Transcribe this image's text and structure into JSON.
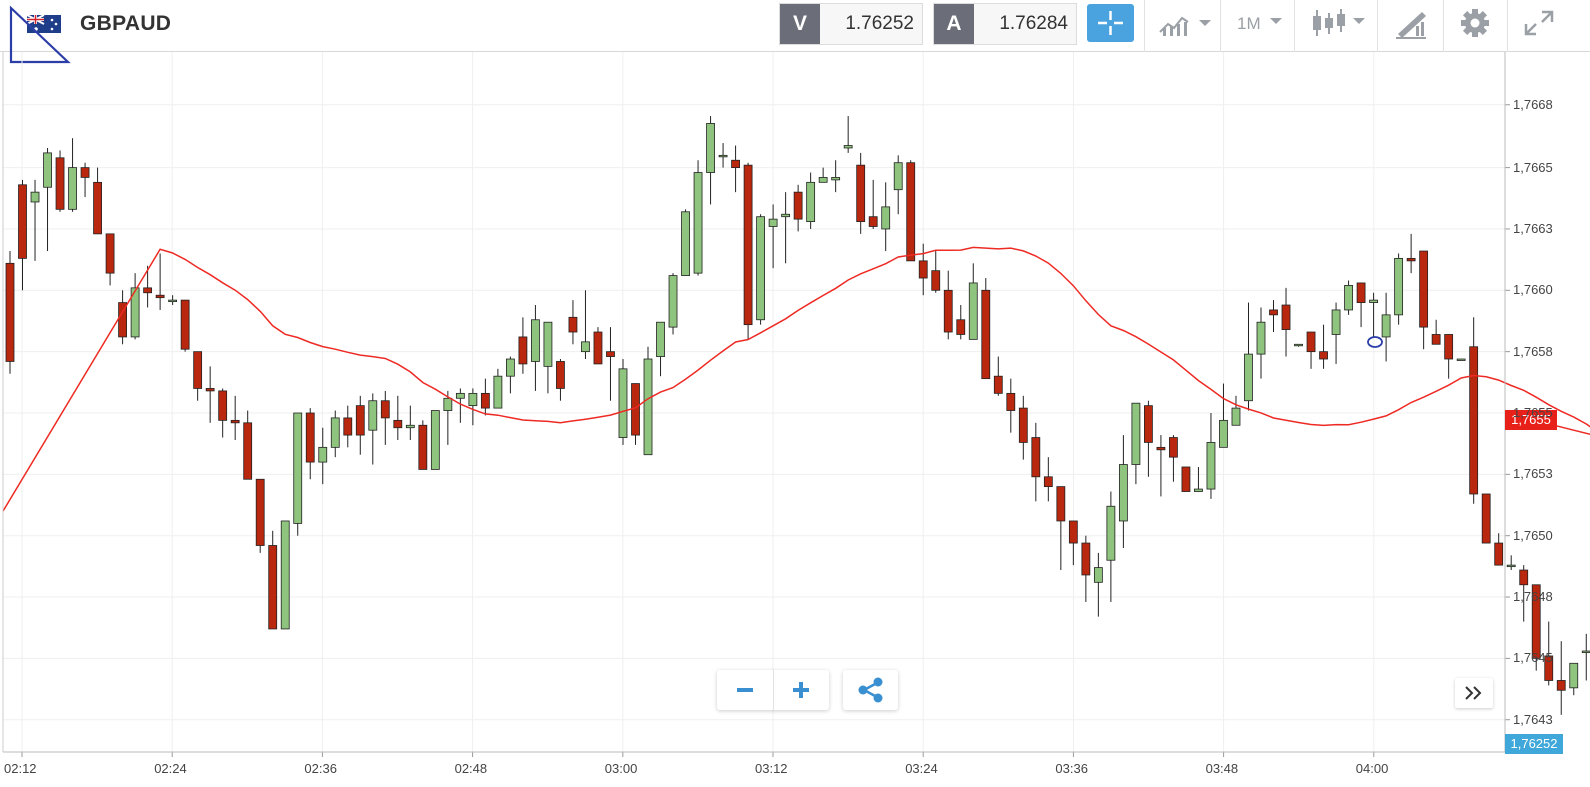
{
  "header": {
    "symbol": "GBPAUD",
    "sell_tag": "V",
    "sell_price": "1.76252",
    "buy_tag": "A",
    "buy_price": "1.76284",
    "timeframe": "1M",
    "icons": [
      "flag-au-icon",
      "draw-triangle-icon",
      "crosshair-icon",
      "chart-type-icon",
      "candlestick-icon",
      "drawing-tools-icon",
      "gear-icon",
      "fullscreen-icon"
    ]
  },
  "chart_data": {
    "type": "candlestick",
    "instrument": "GBPAUD",
    "interval": "1M",
    "y_ticks": [
      "1,7668",
      "1,7665",
      "1,7663",
      "1,7660",
      "1,7658",
      "1,7655",
      "1,7653",
      "1,7650",
      "1,7648",
      "1,7645",
      "1,7643"
    ],
    "x_ticks": [
      "02:12",
      "02:24",
      "02:36",
      "02:48",
      "03:00",
      "03:12",
      "03:24",
      "03:36",
      "03:48",
      "04:00"
    ],
    "ylim": [
      1.76425,
      1.76685
    ],
    "current_price_label": "1,7655",
    "bid_price_label": "1,76252",
    "moving_average_color": "#ee2a24",
    "bull_color": "#8fc47e",
    "bear_color": "#b9270f",
    "candles": [
      [
        1.76616,
        1.76576,
        1.76621,
        1.76571
      ],
      [
        1.76648,
        1.76618,
        1.7665,
        1.76605
      ],
      [
        1.76641,
        1.76645,
        1.7665,
        1.76617
      ],
      [
        1.76647,
        1.76661,
        1.76663,
        1.76621
      ],
      [
        1.76659,
        1.76638,
        1.76662,
        1.76637
      ],
      [
        1.76638,
        1.76655,
        1.76667,
        1.76637
      ],
      [
        1.76655,
        1.76651,
        1.76657,
        1.76643
      ],
      [
        1.76649,
        1.76628,
        1.76655,
        1.76628
      ],
      [
        1.76628,
        1.76612,
        1.76627,
        1.76607
      ],
      [
        1.766,
        1.76586,
        1.76605,
        1.76583
      ],
      [
        1.76586,
        1.76606,
        1.76612,
        1.76585
      ],
      [
        1.76606,
        1.76604,
        1.76615,
        1.76598
      ],
      [
        1.76603,
        1.76602,
        1.7662,
        1.76597
      ],
      [
        1.76601,
        1.76601,
        1.76603,
        1.76599
      ],
      [
        1.76601,
        1.76581,
        1.76601,
        1.7658
      ],
      [
        1.7658,
        1.76565,
        1.7658,
        1.7656
      ],
      [
        1.76565,
        1.76564,
        1.76574,
        1.76551
      ],
      [
        1.76564,
        1.76552,
        1.76565,
        1.76545
      ],
      [
        1.76552,
        1.76551,
        1.76562,
        1.76544
      ],
      [
        1.76551,
        1.76528,
        1.76556,
        1.76528
      ],
      [
        1.76528,
        1.76501,
        1.76528,
        1.76498
      ],
      [
        1.76501,
        1.76467,
        1.76507,
        1.76467
      ],
      [
        1.76467,
        1.76511,
        1.76511,
        1.76467
      ],
      [
        1.7651,
        1.76555,
        1.76555,
        1.76505
      ],
      [
        1.76555,
        1.76535,
        1.76557,
        1.76528
      ],
      [
        1.76535,
        1.76541,
        1.76549,
        1.76526
      ],
      [
        1.76541,
        1.76553,
        1.76556,
        1.76537
      ],
      [
        1.76553,
        1.76546,
        1.76558,
        1.76541
      ],
      [
        1.76558,
        1.76546,
        1.76562,
        1.76538
      ],
      [
        1.76548,
        1.7656,
        1.76563,
        1.76534
      ],
      [
        1.7656,
        1.76553,
        1.76564,
        1.76542
      ],
      [
        1.76552,
        1.76549,
        1.76562,
        1.76544
      ],
      [
        1.76549,
        1.7655,
        1.76558,
        1.76544
      ],
      [
        1.7655,
        1.76532,
        1.76552,
        1.76532
      ],
      [
        1.76532,
        1.76556,
        1.76556,
        1.76532
      ],
      [
        1.76556,
        1.76561,
        1.76564,
        1.76542
      ],
      [
        1.76561,
        1.76563,
        1.76565,
        1.76551
      ],
      [
        1.76558,
        1.76563,
        1.76565,
        1.7655
      ],
      [
        1.76563,
        1.76557,
        1.76569,
        1.76554
      ],
      [
        1.76557,
        1.7657,
        1.76573,
        1.76557
      ],
      [
        1.7657,
        1.76577,
        1.76578,
        1.76563
      ],
      [
        1.76586,
        1.76575,
        1.76594,
        1.76571
      ],
      [
        1.76576,
        1.76593,
        1.76599,
        1.76564
      ],
      [
        1.76574,
        1.76592,
        1.76582,
        1.76563
      ],
      [
        1.76576,
        1.76565,
        1.76577,
        1.7656
      ],
      [
        1.76594,
        1.76588,
        1.76601,
        1.76583
      ],
      [
        1.7658,
        1.76584,
        1.76605,
        1.76577
      ],
      [
        1.76588,
        1.76575,
        1.7659,
        1.76575
      ],
      [
        1.7658,
        1.76578,
        1.7659,
        1.7656
      ],
      [
        1.76545,
        1.76573,
        1.76577,
        1.76542
      ],
      [
        1.76567,
        1.76546,
        1.76567,
        1.76542
      ],
      [
        1.76538,
        1.76577,
        1.76582,
        1.76538
      ],
      [
        1.76578,
        1.76592,
        1.76592,
        1.7657
      ],
      [
        1.7659,
        1.76611,
        1.76612,
        1.76587
      ],
      [
        1.76611,
        1.76637,
        1.76638,
        1.76611
      ],
      [
        1.76612,
        1.76653,
        1.76658,
        1.76611
      ],
      [
        1.76653,
        1.76673,
        1.76676,
        1.7664
      ],
      [
        1.7666,
        1.7666,
        1.76665,
        1.76655
      ],
      [
        1.76658,
        1.76655,
        1.76664,
        1.76645
      ],
      [
        1.76656,
        1.76591,
        1.76657,
        1.76585
      ],
      [
        1.76593,
        1.76635,
        1.76636,
        1.76591
      ],
      [
        1.76631,
        1.76634,
        1.7664,
        1.76614
      ],
      [
        1.76635,
        1.76636,
        1.76645,
        1.76616
      ],
      [
        1.76645,
        1.76634,
        1.76648,
        1.76629
      ],
      [
        1.76633,
        1.76649,
        1.76653,
        1.7663
      ],
      [
        1.76649,
        1.76651,
        1.76655,
        1.76649
      ],
      [
        1.7665,
        1.76651,
        1.76658,
        1.76645
      ],
      [
        1.76663,
        1.76664,
        1.76676,
        1.76661
      ],
      [
        1.76656,
        1.76633,
        1.76661,
        1.76628
      ],
      [
        1.76635,
        1.76631,
        1.7665,
        1.7663
      ],
      [
        1.7663,
        1.76639,
        1.76649,
        1.76621
      ],
      [
        1.76646,
        1.76657,
        1.7666,
        1.76636
      ],
      [
        1.76657,
        1.76617,
        1.76658,
        1.76617
      ],
      [
        1.76617,
        1.7661,
        1.76624,
        1.76603
      ],
      [
        1.76613,
        1.76605,
        1.76621,
        1.76604
      ],
      [
        1.76605,
        1.76588,
        1.76613,
        1.76585
      ],
      [
        1.76593,
        1.76587,
        1.76599,
        1.76585
      ],
      [
        1.76585,
        1.76608,
        1.76616,
        1.76585
      ],
      [
        1.76605,
        1.76569,
        1.7661,
        1.76569
      ],
      [
        1.7657,
        1.76563,
        1.76578,
        1.76562
      ],
      [
        1.76563,
        1.76556,
        1.76569,
        1.76547
      ],
      [
        1.76557,
        1.76543,
        1.76562,
        1.76536
      ],
      [
        1.76545,
        1.76529,
        1.76551,
        1.76519
      ],
      [
        1.76529,
        1.76525,
        1.76537,
        1.76519
      ],
      [
        1.76525,
        1.76511,
        1.76519,
        1.76491
      ],
      [
        1.76511,
        1.76502,
        1.7651,
        1.76493
      ],
      [
        1.76502,
        1.76489,
        1.76505,
        1.76478
      ],
      [
        1.76486,
        1.76492,
        1.76498,
        1.76472
      ],
      [
        1.76495,
        1.76517,
        1.76523,
        1.76478
      ],
      [
        1.76511,
        1.76534,
        1.76546,
        1.765
      ],
      [
        1.76534,
        1.76559,
        1.76559,
        1.76526
      ],
      [
        1.76558,
        1.76543,
        1.7656,
        1.76529
      ],
      [
        1.76541,
        1.7654,
        1.76546,
        1.76521
      ],
      [
        1.76545,
        1.76537,
        1.76546,
        1.76527
      ],
      [
        1.76533,
        1.76523,
        1.76531,
        1.76523
      ],
      [
        1.76523,
        1.76524,
        1.76533,
        1.76524
      ],
      [
        1.76524,
        1.76543,
        1.76555,
        1.7652
      ],
      [
        1.76541,
        1.76552,
        1.76567,
        1.76542
      ],
      [
        1.7655,
        1.76557,
        1.76562,
        1.76552
      ],
      [
        1.7656,
        1.76579,
        1.766,
        1.76556
      ],
      [
        1.76579,
        1.76592,
        1.76598,
        1.76569
      ],
      [
        1.76597,
        1.76595,
        1.76601,
        1.76588
      ],
      [
        1.76599,
        1.76589,
        1.76606,
        1.76578
      ],
      [
        1.76583,
        1.76583,
        1.76583,
        1.76582
      ],
      [
        1.76588,
        1.7658,
        1.76585,
        1.76573
      ],
      [
        1.7658,
        1.76577,
        1.76591,
        1.76573
      ],
      [
        1.76587,
        1.76597,
        1.766,
        1.76575
      ],
      [
        1.76597,
        1.76607,
        1.76609,
        1.76595
      ],
      [
        1.76608,
        1.766,
        1.76608,
        1.7659
      ],
      [
        1.766,
        1.76601,
        1.76604,
        1.76586
      ],
      [
        1.76586,
        1.76595,
        1.76604,
        1.76576
      ],
      [
        1.76595,
        1.76618,
        1.7662,
        1.76591
      ],
      [
        1.76618,
        1.76617,
        1.76628,
        1.76612
      ],
      [
        1.76621,
        1.7659,
        1.76621,
        1.76581
      ],
      [
        1.76587,
        1.76583,
        1.76593,
        1.76583
      ],
      [
        1.76587,
        1.76577,
        1.76585,
        1.76569
      ],
      [
        1.76577,
        1.76577,
        1.76577,
        1.76577
      ],
      [
        1.76582,
        1.76522,
        1.76594,
        1.76518
      ],
      [
        1.76522,
        1.76502,
        1.76522,
        1.76502
      ],
      [
        1.76502,
        1.76493,
        1.76506,
        1.76493
      ],
      [
        1.76493,
        1.76493,
        1.76497,
        1.76491
      ],
      [
        1.76491,
        1.76485,
        1.76493,
        1.7647
      ],
      [
        1.76485,
        1.76455,
        1.76485,
        1.7645
      ],
      [
        1.76456,
        1.76446,
        1.7647,
        1.76444
      ],
      [
        1.76446,
        1.76442,
        1.76462,
        1.76432
      ],
      [
        1.76443,
        1.76453,
        1.76453,
        1.7644
      ],
      [
        1.76458,
        1.76458,
        1.76465,
        1.76446
      ],
      [
        1.76458,
        1.76446,
        1.76465,
        1.76445
      ],
      [
        1.76446,
        1.76473,
        1.76479,
        1.76442
      ]
    ]
  }
}
